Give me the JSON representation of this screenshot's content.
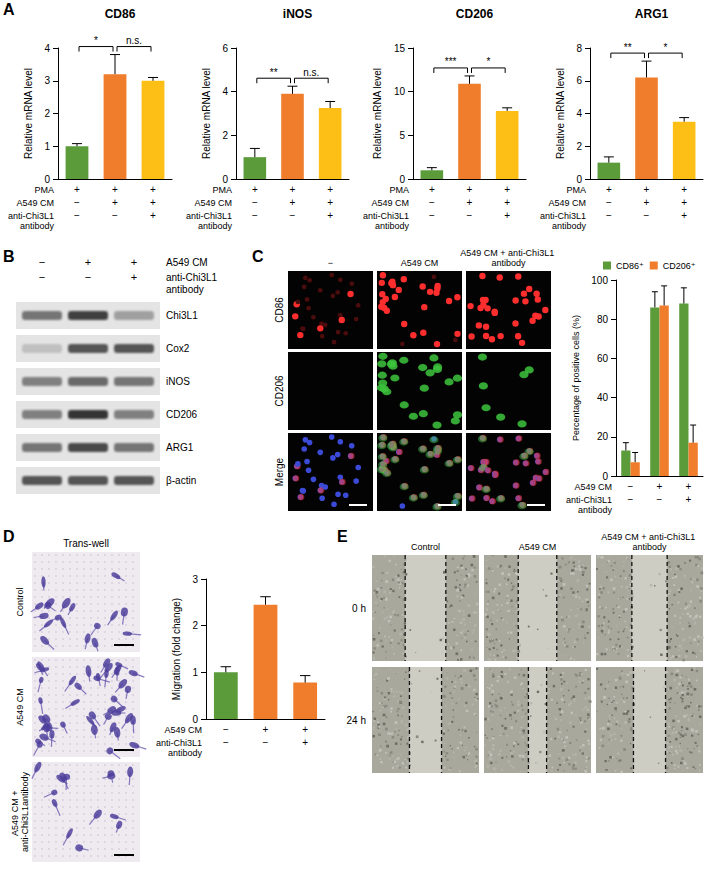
{
  "panel_labels": [
    "A",
    "B",
    "C",
    "D",
    "E"
  ],
  "chart_data": [
    {
      "type": "bar",
      "title": "CD86",
      "y_label": "Relative mRNA level",
      "categories": [
        null,
        null,
        null
      ],
      "values": [
        1.0,
        3.2,
        3.0
      ],
      "errors": [
        0.08,
        0.6,
        0.1
      ],
      "colors": [
        "#5b9b3a",
        "#f07d2b",
        "#fdbf15"
      ],
      "ylim": [
        0,
        4
      ],
      "yticks": [
        0,
        1,
        2,
        3,
        4
      ],
      "grid": false,
      "tick_labels": "y",
      "significance": [
        {
          "pair": [
            0,
            1
          ],
          "label": "*"
        },
        {
          "pair": [
            1,
            2
          ],
          "label": "n.s."
        }
      ],
      "conditions": [
        {
          "label": "PMA",
          "marks": [
            "+",
            "+",
            "+"
          ]
        },
        {
          "label": "A549 CM",
          "marks": [
            "−",
            "+",
            "+"
          ]
        },
        {
          "label": "anti-Chi3L1 antibody",
          "marks": [
            "−",
            "−",
            "+"
          ]
        }
      ]
    },
    {
      "type": "bar",
      "title": "iNOS",
      "y_label": "Relative mRNA level",
      "categories": [
        null,
        null,
        null
      ],
      "values": [
        1.0,
        3.9,
        3.25
      ],
      "errors": [
        0.4,
        0.35,
        0.3
      ],
      "colors": [
        "#5b9b3a",
        "#f07d2b",
        "#fdbf15"
      ],
      "ylim": [
        0,
        6
      ],
      "yticks": [
        0,
        2,
        4,
        6
      ],
      "grid": false,
      "tick_labels": "y",
      "significance": [
        {
          "pair": [
            0,
            1
          ],
          "label": "**"
        },
        {
          "pair": [
            1,
            2
          ],
          "label": "n.s."
        }
      ],
      "conditions": [
        {
          "label": "PMA",
          "marks": [
            "+",
            "+",
            "+"
          ]
        },
        {
          "label": "A549 CM",
          "marks": [
            "−",
            "+",
            "+"
          ]
        },
        {
          "label": "anti-Chi3L1 antibody",
          "marks": [
            "−",
            "−",
            "+"
          ]
        }
      ]
    },
    {
      "type": "bar",
      "title": "CD206",
      "y_label": "Relative mRNA level",
      "categories": [
        null,
        null,
        null
      ],
      "values": [
        1.0,
        10.9,
        7.8
      ],
      "errors": [
        0.3,
        0.9,
        0.35
      ],
      "colors": [
        "#5b9b3a",
        "#f07d2b",
        "#fdbf15"
      ],
      "ylim": [
        0,
        15
      ],
      "yticks": [
        0,
        5,
        10,
        15
      ],
      "grid": false,
      "tick_labels": "y",
      "significance": [
        {
          "pair": [
            0,
            1
          ],
          "label": "***"
        },
        {
          "pair": [
            1,
            2
          ],
          "label": "*"
        }
      ],
      "conditions": [
        {
          "label": "PMA",
          "marks": [
            "+",
            "+",
            "+"
          ]
        },
        {
          "label": "A549 CM",
          "marks": [
            "−",
            "+",
            "+"
          ]
        },
        {
          "label": "anti-Chi3L1 antibody",
          "marks": [
            "−",
            "−",
            "+"
          ]
        }
      ]
    },
    {
      "type": "bar",
      "title": "ARG1",
      "y_label": "Relative mRNA level",
      "categories": [
        null,
        null,
        null
      ],
      "values": [
        1.0,
        6.2,
        3.5
      ],
      "errors": [
        0.35,
        1.0,
        0.25
      ],
      "colors": [
        "#5b9b3a",
        "#f07d2b",
        "#fdbf15"
      ],
      "ylim": [
        0,
        8
      ],
      "yticks": [
        0,
        2,
        4,
        6,
        8
      ],
      "grid": false,
      "tick_labels": "y",
      "significance": [
        {
          "pair": [
            0,
            1
          ],
          "label": "**"
        },
        {
          "pair": [
            1,
            2
          ],
          "label": "*"
        }
      ],
      "conditions": [
        {
          "label": "PMA",
          "marks": [
            "+",
            "+",
            "+"
          ]
        },
        {
          "label": "A549 CM",
          "marks": [
            "−",
            "+",
            "+"
          ]
        },
        {
          "label": "anti-Chi3L1 antibody",
          "marks": [
            "−",
            "−",
            "+"
          ]
        }
      ]
    },
    {
      "type": "bar",
      "y_label": "Percentage of positive cells (%)",
      "categories": [
        null,
        null,
        null
      ],
      "series": [
        {
          "name": "CD86⁺",
          "color": "#5b9b3a",
          "values": [
            13,
            86,
            88
          ],
          "errors": [
            4,
            8,
            8
          ]
        },
        {
          "name": "CD206⁺",
          "color": "#f07d2b",
          "values": [
            7,
            87,
            17
          ],
          "errors": [
            5,
            10,
            9
          ]
        }
      ],
      "ylim": [
        0,
        100
      ],
      "yticks": [
        0,
        20,
        40,
        60,
        80,
        100
      ],
      "grid": false,
      "legend": "top",
      "tick_labels": "y",
      "conditions": [
        {
          "label": "A549 CM",
          "marks": [
            "−",
            "+",
            "+"
          ]
        },
        {
          "label": "anti-Chi3L1 antibody",
          "marks": [
            "−",
            "−",
            "+"
          ]
        }
      ]
    },
    {
      "type": "bar",
      "y_label": "Migration (fold change)",
      "categories": [
        null,
        null,
        null
      ],
      "values": [
        1.0,
        2.45,
        0.78
      ],
      "errors": [
        0.12,
        0.17,
        0.15
      ],
      "colors": [
        "#5b9b3a",
        "#f07d2b",
        "#f07d2b"
      ],
      "ylim": [
        0,
        3
      ],
      "yticks": [
        0,
        1,
        2,
        3
      ],
      "grid": false,
      "tick_labels": "y",
      "conditions": [
        {
          "label": "A549 CM",
          "marks": [
            "−",
            "+",
            "+"
          ]
        },
        {
          "label": "anti-Chi3L1 antibody",
          "marks": [
            "−",
            "−",
            "+"
          ]
        }
      ]
    }
  ],
  "blot": {
    "header": [
      {
        "label": "A549 CM",
        "marks": [
          "−",
          "+",
          "+"
        ]
      },
      {
        "label": "anti-Chi3L1 antibody",
        "marks": [
          "−",
          "−",
          "+"
        ]
      }
    ],
    "rows": [
      {
        "label": "Chi3L1",
        "bands": [
          0.55,
          0.8,
          0.35
        ]
      },
      {
        "label": "Cox2",
        "bands": [
          0.2,
          0.7,
          0.7
        ]
      },
      {
        "label": "iNOS",
        "bands": [
          0.5,
          0.6,
          0.55
        ]
      },
      {
        "label": "CD206",
        "bands": [
          0.5,
          0.85,
          0.5
        ]
      },
      {
        "label": "ARG1",
        "bands": [
          0.55,
          0.75,
          0.55
        ]
      },
      {
        "label": "β-actin",
        "bands": [
          0.7,
          0.7,
          0.7
        ]
      }
    ]
  },
  "microscopy": {
    "columns": [
      "−",
      "A549 CM",
      "A549 CM + anti-Chi3L1 antibody"
    ],
    "rows": [
      "CD86",
      "CD206",
      "Merge"
    ]
  },
  "transwell": {
    "title": "Trans-well",
    "rows": [
      "Control",
      "A549 CM",
      "A549 CM + anti-Chi3L1antibody"
    ]
  },
  "wound": {
    "columns": [
      "Control",
      "A549 CM",
      "A549 CM + anti-Chi3L1 antibody"
    ],
    "rows": [
      "0 h",
      "24 h"
    ],
    "gap_width": [
      [
        0.38,
        0.36,
        0.33
      ],
      [
        0.3,
        0.17,
        0.3
      ]
    ]
  }
}
